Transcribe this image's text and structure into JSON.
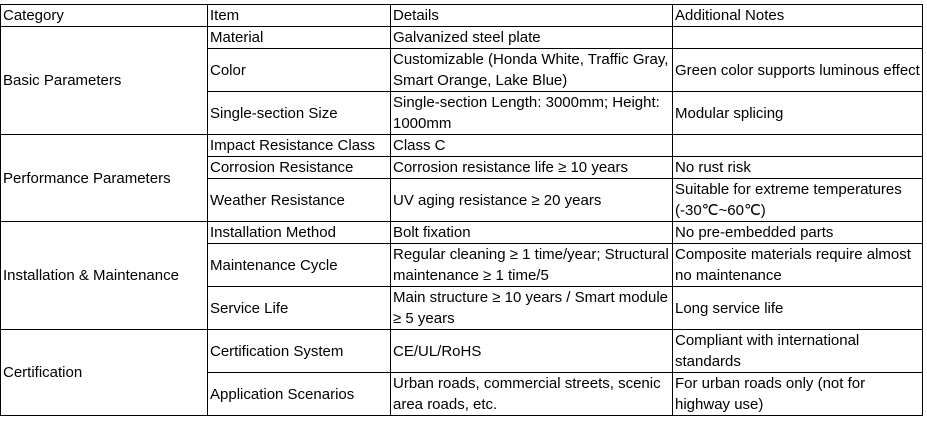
{
  "table": {
    "headers": [
      "Category",
      "Item",
      "Details",
      "Additional Notes"
    ],
    "groups": [
      {
        "category": "Basic Parameters",
        "rows": [
          {
            "item": "Material",
            "details": "Galvanized steel plate"
          },
          {
            "item": "Color",
            "details": "Customizable (Honda White, Traffic Gray, Smart Orange, Lake Blue)",
            "notes": "Green color supports luminous effect"
          },
          {
            "item": "Single-section Size",
            "details": "Single-section Length: 3000mm; Height: 1000mm",
            "notes": "Modular splicing"
          }
        ]
      },
      {
        "category": "Performance Parameters",
        "rows": [
          {
            "item": "Impact Resistance Class",
            "details": "Class C"
          },
          {
            "item": "Corrosion Resistance",
            "details": "Corrosion resistance life ≥ 10 years",
            "notes": "No rust risk"
          },
          {
            "item": "Weather Resistance",
            "details": "UV aging resistance ≥ 20 years",
            "notes": "Suitable for extreme temperatures (-30℃~60℃)"
          }
        ]
      },
      {
        "category": "Installation & Maintenance",
        "rows": [
          {
            "item": "Installation Method",
            "details": "Bolt fixation",
            "notes": "No pre-embedded parts"
          },
          {
            "item": "Maintenance Cycle",
            "details": "Regular cleaning ≥ 1 time/year; Structural maintenance ≥ 1 time/5",
            "notes": "Composite materials require almost no maintenance"
          },
          {
            "item": "Service Life",
            "details": "Main structure ≥ 10 years / Smart module ≥ 5 years",
            "notes": "Long service life"
          }
        ]
      },
      {
        "category": "Certification",
        "rows": [
          {
            "item": "Certification System",
            "details": "CE/UL/RoHS",
            "notes": "Compliant with international standards"
          },
          {
            "item": "Application Scenarios",
            "details": "Urban roads, commercial streets, scenic area roads, etc.",
            "notes": "For urban roads only (not for highway use)"
          }
        ]
      }
    ]
  }
}
